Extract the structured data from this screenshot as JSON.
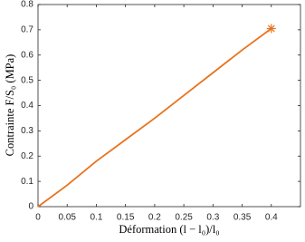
{
  "chart_data": {
    "type": "line",
    "x_label": "Déformation (l − l₀)/l₀",
    "y_label": "Contrainte F/S₀ (MPa)",
    "x": [
      0,
      0.05,
      0.1,
      0.15,
      0.2,
      0.25,
      0.3,
      0.35,
      0.4
    ],
    "values": [
      0,
      0.085,
      0.18,
      0.265,
      0.35,
      0.44,
      0.53,
      0.62,
      0.705
    ],
    "color": "#e8731f",
    "marker_last": "star",
    "xlim": [
      0,
      0.45
    ],
    "xticks": [
      0,
      0.05,
      0.1,
      0.15,
      0.2,
      0.25,
      0.3,
      0.35,
      0.4
    ],
    "ylim": [
      0,
      0.8
    ],
    "yticks": [
      0,
      0.1,
      0.2,
      0.3,
      0.4,
      0.5,
      0.6,
      0.7,
      0.8
    ]
  }
}
